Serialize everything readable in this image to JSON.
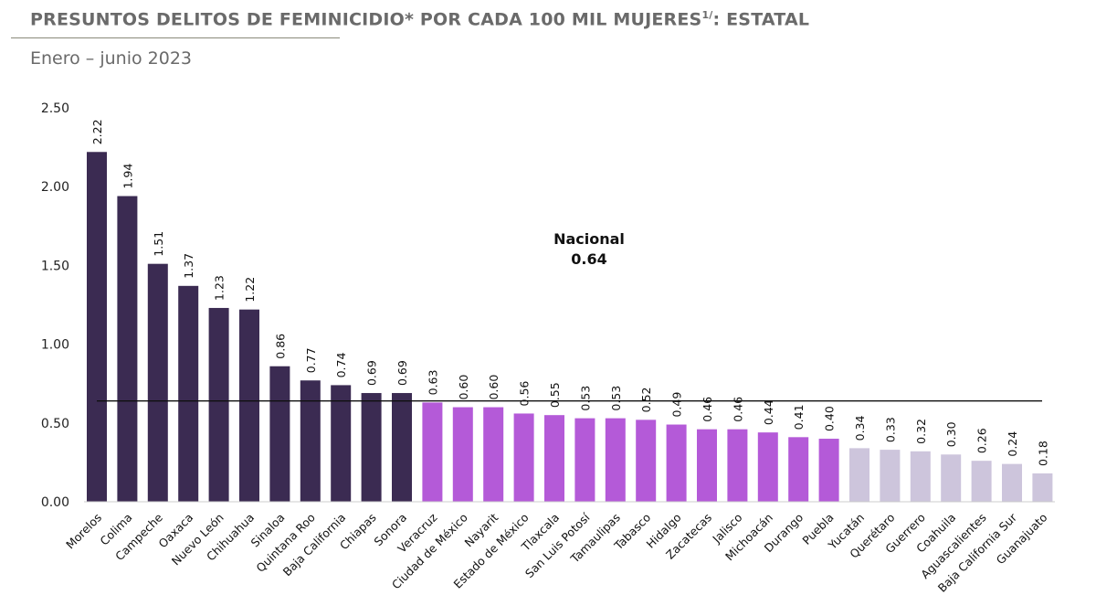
{
  "chart_data": {
    "type": "bar",
    "title": "PRESUNTOS DELITOS DE FEMINICIDIO* POR CADA 100 MIL MUJERES",
    "title_superscript": "1/",
    "title_suffix": ": ESTATAL",
    "subtitle": "Enero – junio 2023",
    "categories": [
      "Morelos",
      "Colima",
      "Campeche",
      "Oaxaca",
      "Nuevo León",
      "Chihuahua",
      "Sinaloa",
      "Quintana Roo",
      "Baja California",
      "Chiapas",
      "Sonora",
      "Veracruz",
      "Ciudad de México",
      "Nayarit",
      "Estado de México",
      "Tlaxcala",
      "San Luis Potosí",
      "Tamaulipas",
      "Tabasco",
      "Hidalgo",
      "Zacatecas",
      "Jalisco",
      "Michoacán",
      "Durango",
      "Puebla",
      "Yucatán",
      "Querétaro",
      "Guerrero",
      "Coahuila",
      "Aguascalientes",
      "Baja California Sur",
      "Guanajuato"
    ],
    "values": [
      2.22,
      1.94,
      1.51,
      1.37,
      1.23,
      1.22,
      0.86,
      0.77,
      0.74,
      0.69,
      0.69,
      0.63,
      0.6,
      0.6,
      0.56,
      0.55,
      0.53,
      0.53,
      0.52,
      0.49,
      0.46,
      0.46,
      0.44,
      0.41,
      0.4,
      0.34,
      0.33,
      0.32,
      0.3,
      0.26,
      0.24,
      0.18
    ],
    "value_labels": [
      "2.22",
      "1.94",
      "1.51",
      "1.37",
      "1.23",
      "1.22",
      "0.86",
      "0.77",
      "0.74",
      "0.69",
      "0.69",
      "0.63",
      "0.60",
      "0.60",
      "0.56",
      "0.55",
      "0.53",
      "0.53",
      "0.52",
      "0.49",
      "0.46",
      "0.46",
      "0.44",
      "0.41",
      "0.40",
      "0.34",
      "0.33",
      "0.32",
      "0.30",
      "0.26",
      "0.24",
      "0.18"
    ],
    "color_groups": [
      0,
      0,
      0,
      0,
      0,
      0,
      0,
      0,
      0,
      0,
      0,
      1,
      1,
      1,
      1,
      1,
      1,
      1,
      1,
      1,
      1,
      1,
      1,
      1,
      1,
      2,
      2,
      2,
      2,
      2,
      2,
      2
    ],
    "colors": [
      "#3b2b52",
      "#b45ad8",
      "#cdc5dc"
    ],
    "ylim": [
      0,
      2.5
    ],
    "yticks": [
      "0.00",
      "0.50",
      "1.00",
      "1.50",
      "2.00",
      "2.50"
    ],
    "grid": false,
    "reference_line": {
      "label": "Nacional",
      "value": 0.64,
      "value_label": "0.64"
    }
  }
}
